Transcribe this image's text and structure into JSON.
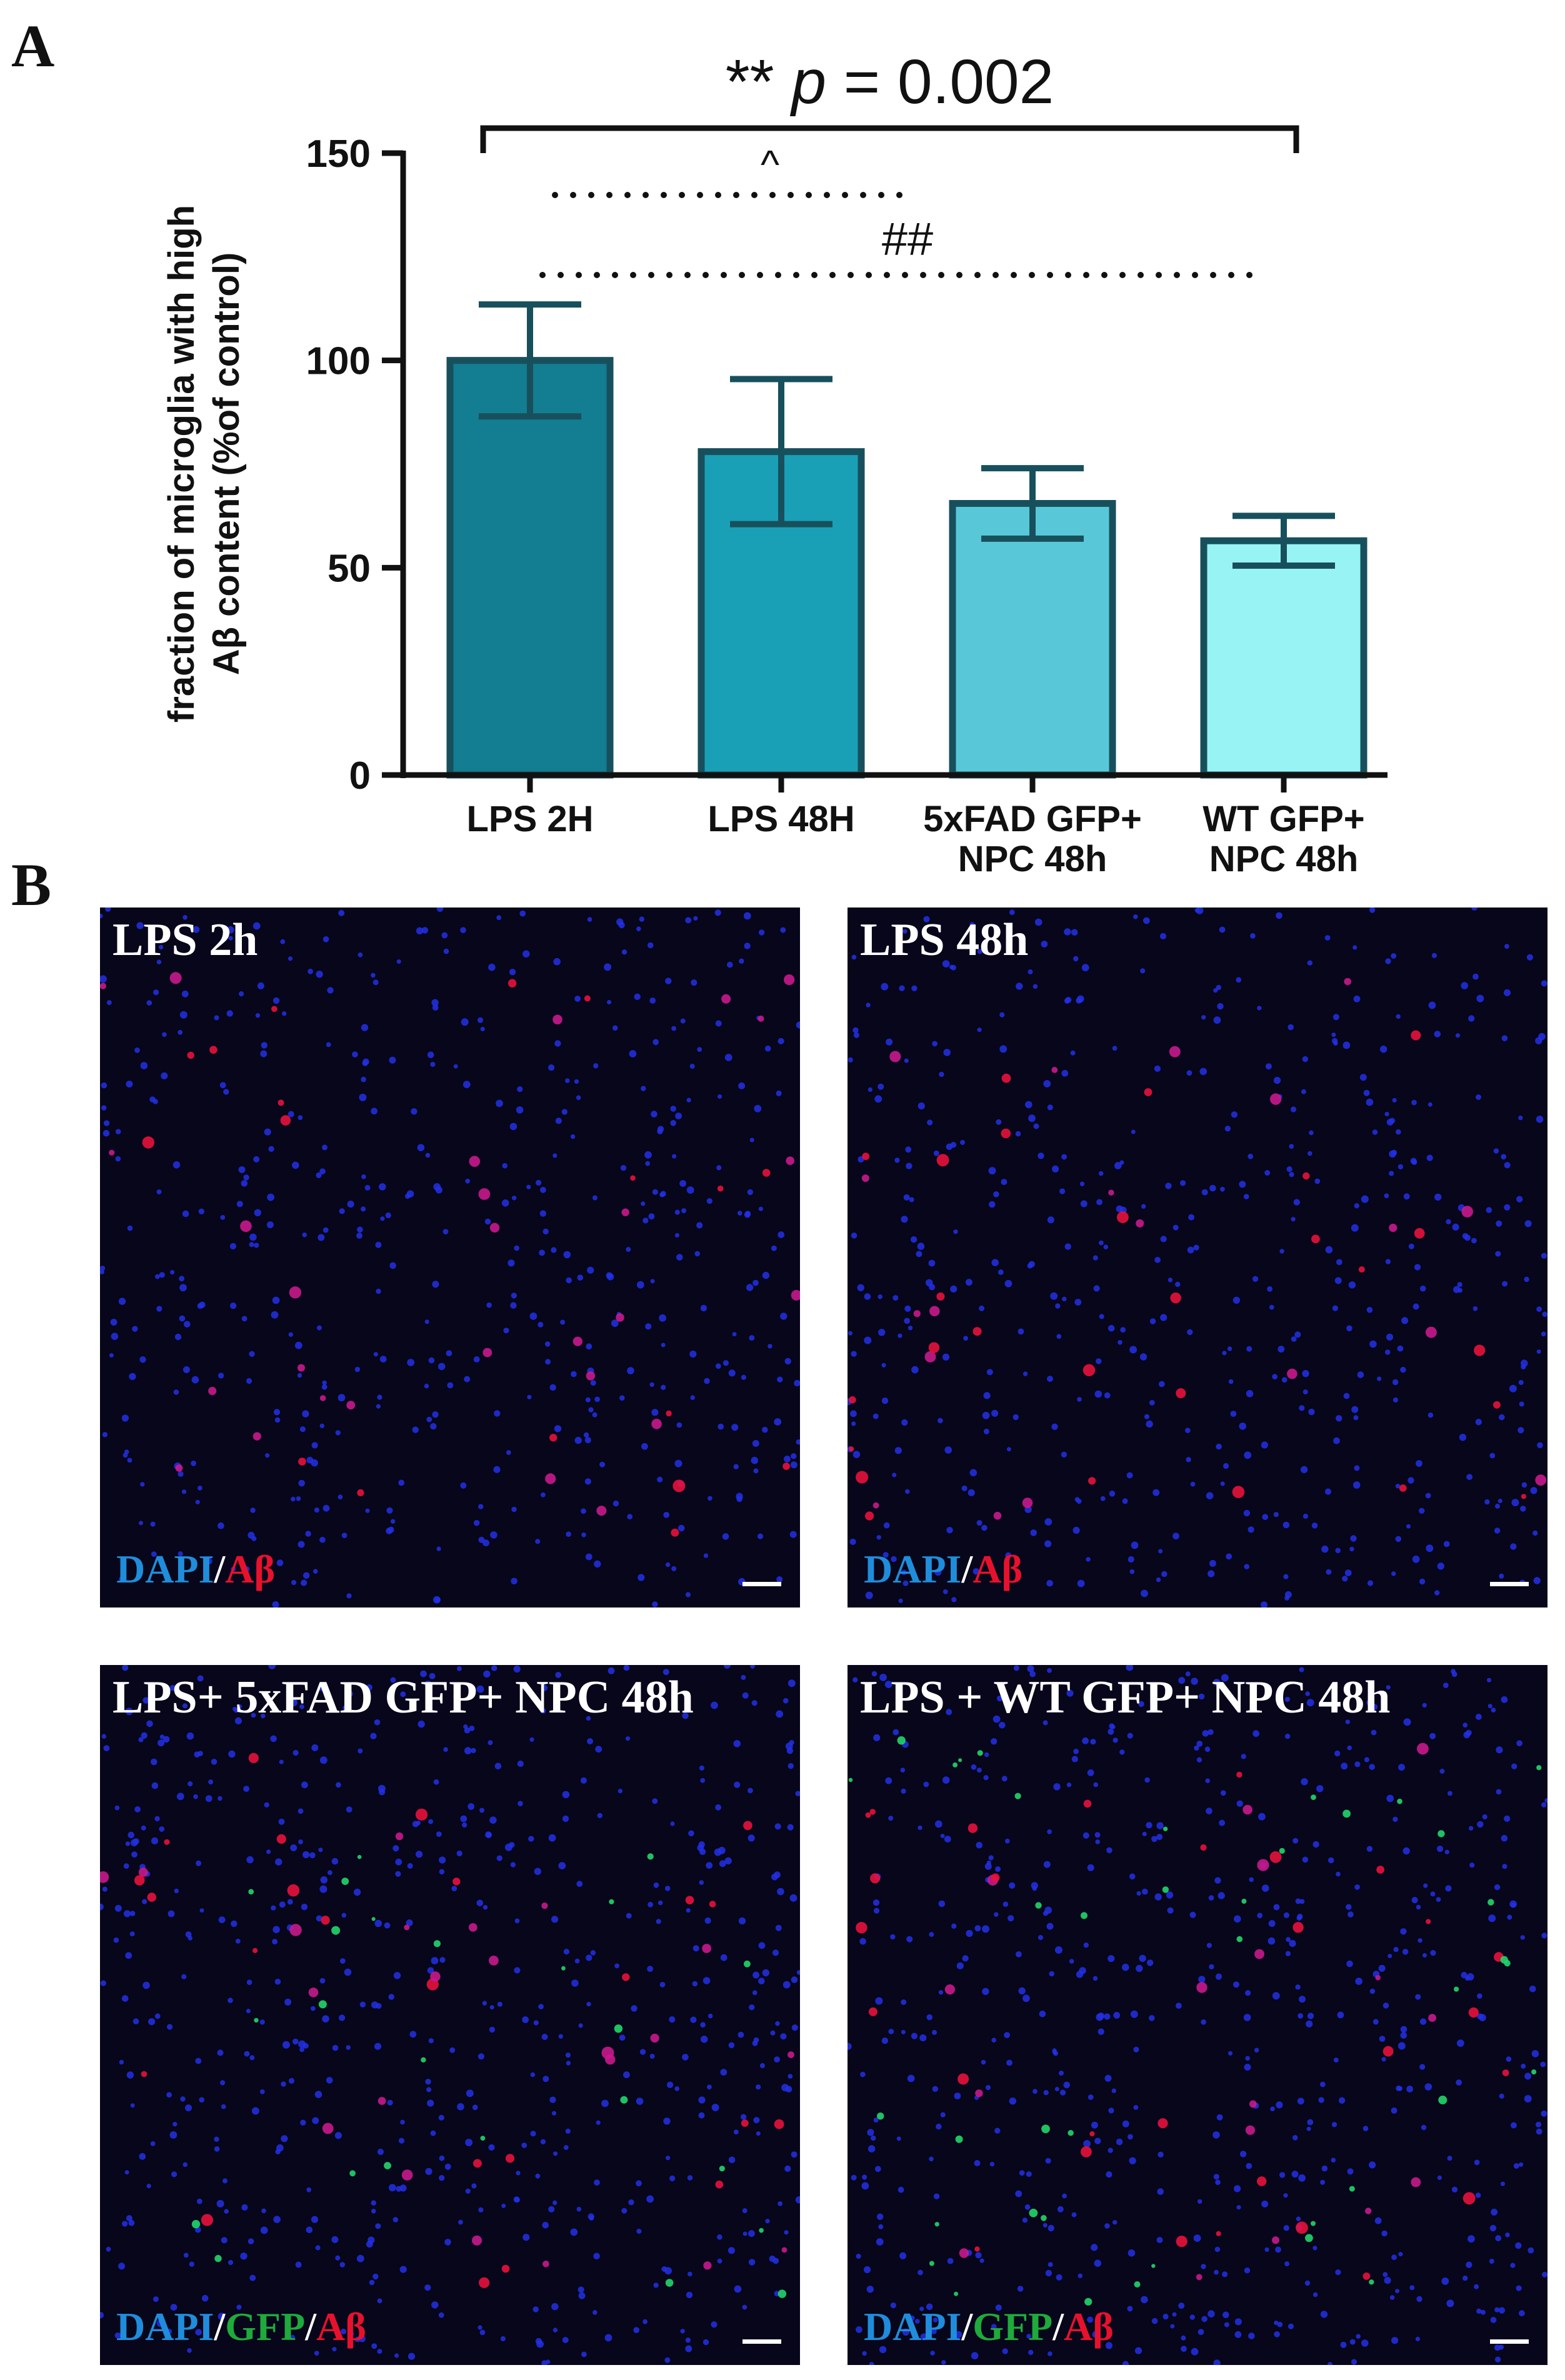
{
  "panels": {
    "a_label": "A",
    "b_label": "B"
  },
  "chart_data": {
    "type": "bar",
    "categories": [
      "LPS 2H",
      "LPS 48H",
      "5xFAD GFP+\nNPC 48h",
      "WT GFP+\nNPC 48h"
    ],
    "values": [
      100,
      78,
      65.5,
      56.5
    ],
    "errors": [
      13.5,
      17.5,
      8.5,
      6
    ],
    "bar_colors": [
      "#137d91",
      "#1aa0b6",
      "#58c8d8",
      "#98f4f4"
    ],
    "edge_color": "#17505c",
    "ylabel": "fraction of microglia with high\nAβ content (%of control)",
    "ylim": [
      0,
      150
    ],
    "yticks": [
      0,
      50,
      100,
      150
    ],
    "annotations": [
      {
        "text": "** p = 0.002",
        "from": 0,
        "to": 3,
        "style": "bracket"
      },
      {
        "text": "^",
        "from": 0,
        "to": 2,
        "style": "dotted"
      },
      {
        "text": "##",
        "from": 0,
        "to": 3,
        "style": "dotted"
      }
    ]
  },
  "micrographs": [
    {
      "title": "LPS 2h",
      "legend": [
        {
          "text": "DAPI",
          "color": "#1f8ddb"
        },
        {
          "text": "/",
          "color": "#ffffff"
        },
        {
          "text": "Aβ",
          "color": "#e8112d"
        }
      ]
    },
    {
      "title": "LPS 48h",
      "legend": [
        {
          "text": "DAPI",
          "color": "#1f8ddb"
        },
        {
          "text": "/",
          "color": "#ffffff"
        },
        {
          "text": "Aβ",
          "color": "#e8112d"
        }
      ]
    },
    {
      "title": "LPS+ 5xFAD GFP+ NPC 48h",
      "legend": [
        {
          "text": "DAPI",
          "color": "#1f8ddb"
        },
        {
          "text": "/",
          "color": "#ffffff"
        },
        {
          "text": "GFP",
          "color": "#1faa3c"
        },
        {
          "text": "/",
          "color": "#ffffff"
        },
        {
          "text": "Aβ",
          "color": "#e8112d"
        }
      ]
    },
    {
      "title": "LPS + WT GFP+ NPC 48h",
      "legend": [
        {
          "text": "DAPI",
          "color": "#1f8ddb"
        },
        {
          "text": "/",
          "color": "#ffffff"
        },
        {
          "text": "GFP",
          "color": "#1faa3c"
        },
        {
          "text": "/",
          "color": "#ffffff"
        },
        {
          "text": "Aβ",
          "color": "#e8112d"
        }
      ]
    }
  ]
}
